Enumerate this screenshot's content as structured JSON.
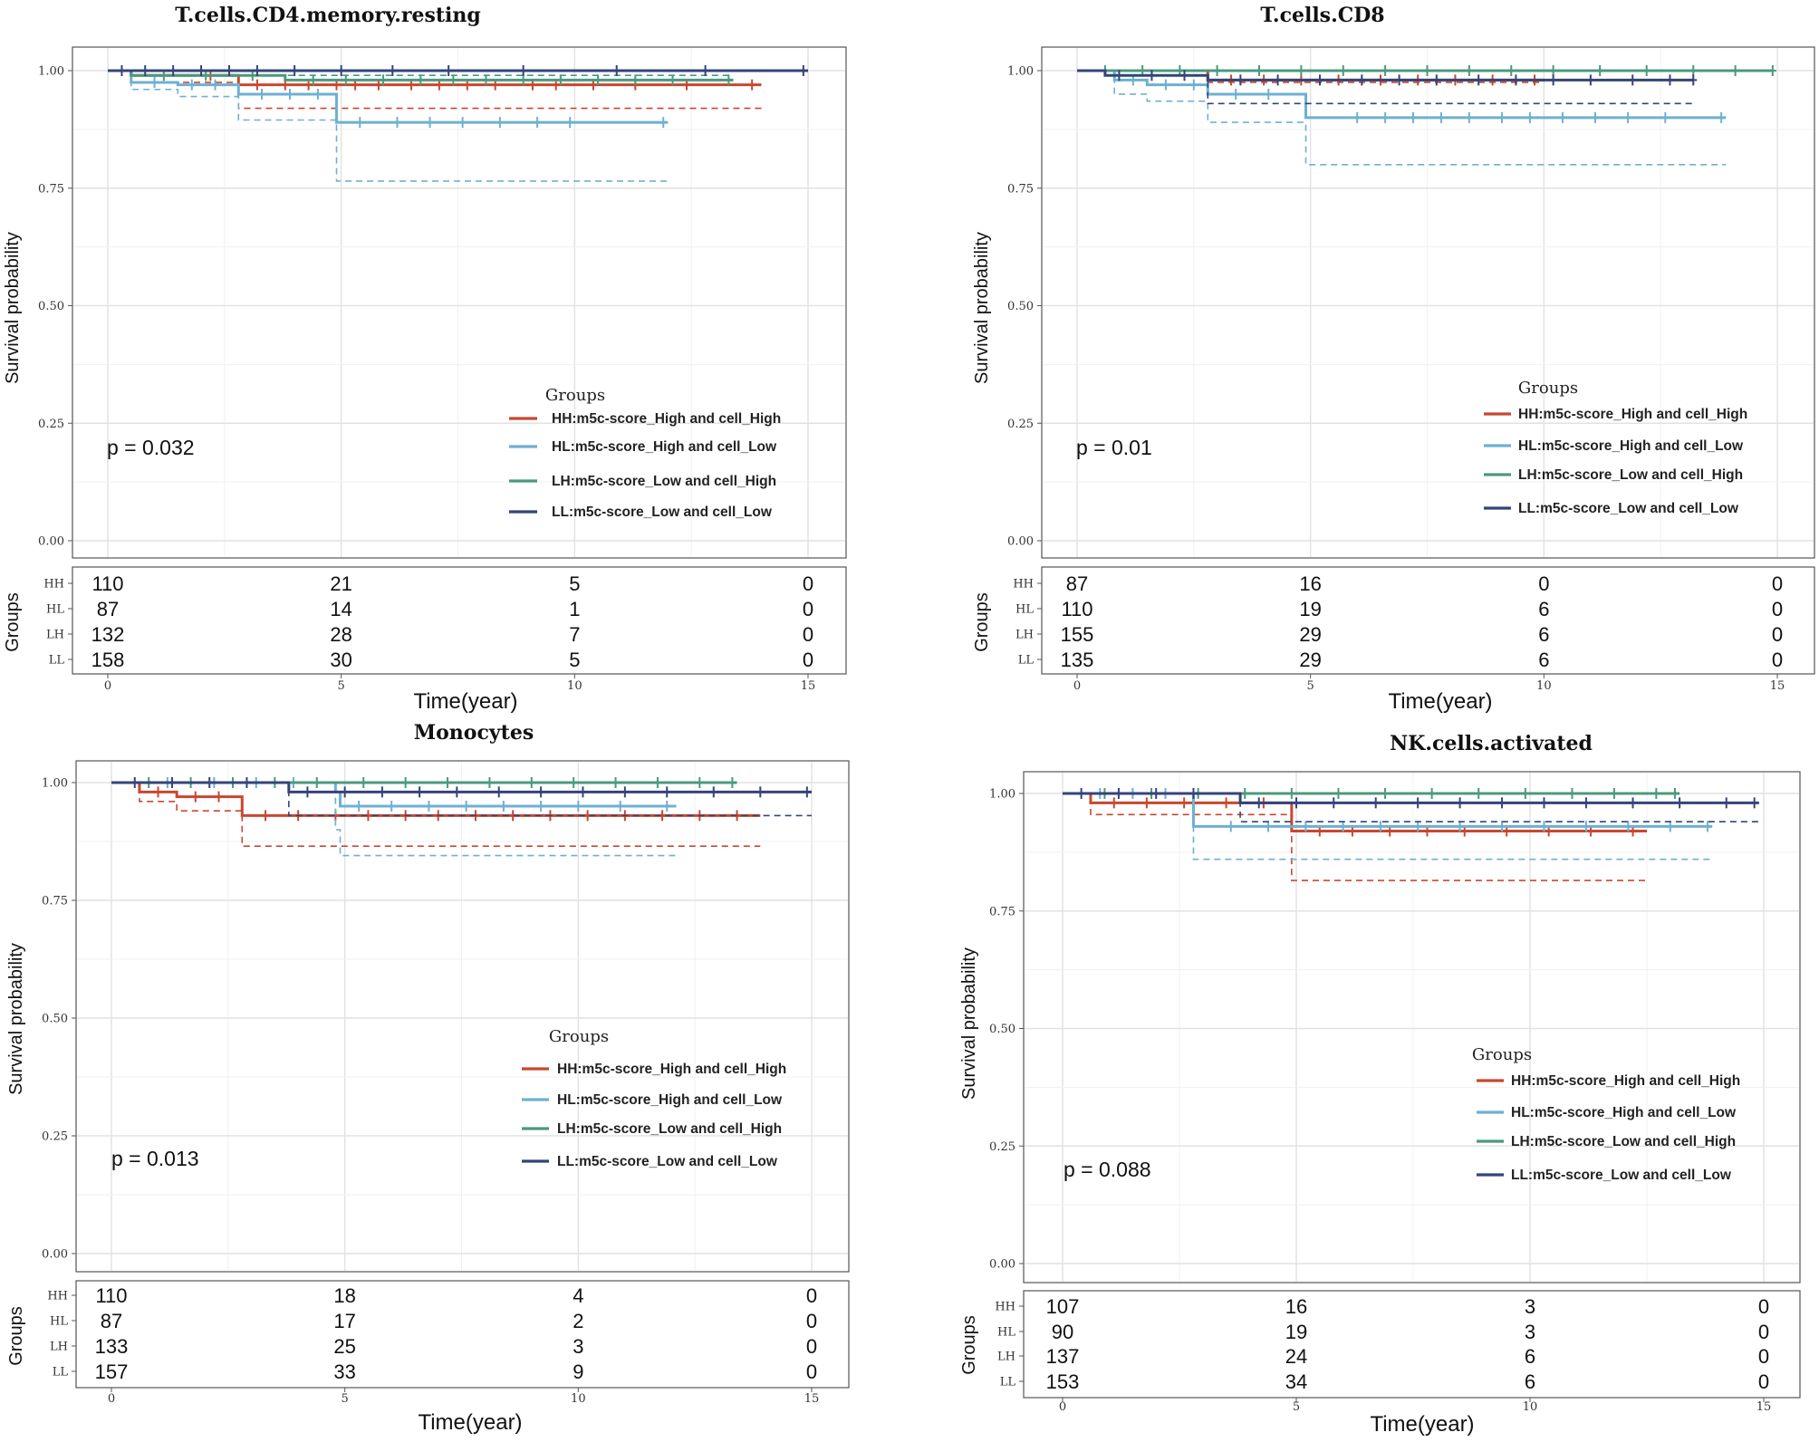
{
  "legend_title": "Groups",
  "xlabel": "Time(year)",
  "ylabel": "Survival probability",
  "risk_ylabel": "Groups",
  "colors": {
    "HH": "#c9472e",
    "HL": "#6eb0d2",
    "LH": "#4a9a7c",
    "LL": "#34447a"
  },
  "chart_data": [
    {
      "type": "line",
      "title": "T.cells.CD4.memory.resting",
      "p_value": "p = 0.032",
      "xlim": [
        0,
        15
      ],
      "ylim": [
        0,
        1
      ],
      "x_ticks": [
        "0",
        "5",
        "10",
        "15"
      ],
      "y_ticks": [
        "0.00",
        "0.25",
        "0.50",
        "0.75",
        "1.00"
      ],
      "series": [
        {
          "key": "HH",
          "name": "HH:m5c-score_High and cell_High",
          "steps": [
            [
              0,
              1.0
            ],
            [
              0.5,
              0.99
            ],
            [
              2.8,
              0.97
            ],
            [
              14,
              0.97
            ]
          ],
          "ci_lower": [
            [
              0,
              1.0
            ],
            [
              0.5,
              0.975
            ],
            [
              2.8,
              0.92
            ],
            [
              14,
              0.92
            ]
          ],
          "censors": [
            2.2,
            3.2,
            3.8,
            4.3,
            4.9,
            5.3,
            5.8,
            6.5,
            7.1,
            7.7,
            8.3,
            9.1,
            9.6,
            10.4,
            11.3,
            12.4,
            13.8
          ]
        },
        {
          "key": "HL",
          "name": "HL:m5c-score_High and cell_Low",
          "steps": [
            [
              0,
              1.0
            ],
            [
              0.5,
              0.975
            ],
            [
              1.5,
              0.97
            ],
            [
              2.8,
              0.95
            ],
            [
              4.9,
              0.89
            ],
            [
              12,
              0.89
            ]
          ],
          "ci_lower": [
            [
              0,
              1.0
            ],
            [
              0.5,
              0.96
            ],
            [
              1.5,
              0.945
            ],
            [
              2.8,
              0.895
            ],
            [
              4.9,
              0.765
            ],
            [
              12,
              0.765
            ]
          ],
          "censors": [
            1.0,
            1.8,
            2.3,
            3.3,
            3.9,
            4.5,
            5.4,
            6.2,
            6.9,
            7.6,
            8.4,
            9.2,
            9.9,
            11.9
          ]
        },
        {
          "key": "LH",
          "name": "LH:m5c-score_Low and cell_High",
          "steps": [
            [
              0,
              1.0
            ],
            [
              0.5,
              0.99
            ],
            [
              3.8,
              0.98
            ],
            [
              13.4,
              0.98
            ]
          ],
          "ci_lower": [
            [
              0,
              1.0
            ],
            [
              0.5,
              0.99
            ],
            [
              13.4,
              0.99
            ]
          ],
          "censors": [
            1.2,
            2.1,
            3.1,
            4.4,
            5.1,
            5.9,
            6.7,
            7.4,
            8.1,
            8.9,
            9.7,
            10.5,
            11.3,
            12.1,
            13.3
          ]
        },
        {
          "key": "LL",
          "name": "LL:m5c-score_Low and cell_Low",
          "steps": [
            [
              0,
              1.0
            ],
            [
              15,
              1.0
            ]
          ],
          "ci_lower": [],
          "censors": [
            0.3,
            0.8,
            1.4,
            2.0,
            2.6,
            3.2,
            4.0,
            5.0,
            6.1,
            7.3,
            8.9,
            10.9,
            12.8,
            14.9
          ]
        }
      ],
      "risk_table": {
        "rows": [
          "HH",
          "HL",
          "LH",
          "LL"
        ],
        "counts": [
          [
            "110",
            "21",
            "5",
            "0"
          ],
          [
            "87",
            "14",
            "1",
            "0"
          ],
          [
            "132",
            "28",
            "7",
            "0"
          ],
          [
            "158",
            "30",
            "5",
            "0"
          ]
        ]
      }
    },
    {
      "type": "line",
      "title": "T.cells.CD8",
      "p_value": "p = 0.01",
      "xlim": [
        0,
        15
      ],
      "ylim": [
        0,
        1
      ],
      "x_ticks": [
        "0",
        "5",
        "10",
        "15"
      ],
      "y_ticks": [
        "0.00",
        "0.25",
        "0.50",
        "0.75",
        "1.00"
      ],
      "series": [
        {
          "key": "HH",
          "name": "HH:m5c-score_High and cell_High",
          "steps": [
            [
              0,
              1.0
            ],
            [
              2.8,
              0.98
            ],
            [
              10,
              0.98
            ]
          ],
          "ci_lower": [
            [
              0,
              1.0
            ],
            [
              2.8,
              0.975
            ],
            [
              10,
              0.975
            ]
          ],
          "censors": [
            3.3,
            4.0,
            4.8,
            5.6,
            6.5,
            7.3,
            8.1,
            8.9,
            9.8
          ]
        },
        {
          "key": "HL",
          "name": "HL:m5c-score_High and cell_Low",
          "steps": [
            [
              0,
              1.0
            ],
            [
              0.8,
              0.98
            ],
            [
              1.5,
              0.97
            ],
            [
              2.8,
              0.95
            ],
            [
              4.9,
              0.9
            ],
            [
              13.9,
              0.9
            ]
          ],
          "ci_lower": [
            [
              0,
              1.0
            ],
            [
              0.8,
              0.95
            ],
            [
              1.5,
              0.935
            ],
            [
              2.8,
              0.89
            ],
            [
              4.9,
              0.8
            ],
            [
              13.9,
              0.8
            ]
          ],
          "censors": [
            1.2,
            1.9,
            2.5,
            3.4,
            4.1,
            6.0,
            6.6,
            7.2,
            7.8,
            8.4,
            9.1,
            9.7,
            10.4,
            11.1,
            11.8,
            12.6,
            13.8
          ]
        },
        {
          "key": "LH",
          "name": "LH:m5c-score_Low and cell_High",
          "steps": [
            [
              0,
              1.0
            ],
            [
              14.9,
              1.0
            ]
          ],
          "ci_lower": [],
          "censors": [
            0.6,
            1.4,
            2.2,
            3.0,
            3.9,
            4.8,
            5.7,
            6.6,
            7.5,
            8.4,
            9.3,
            10.2,
            11.2,
            12.2,
            13.2,
            14.1,
            14.9
          ]
        },
        {
          "key": "LL",
          "name": "LL:m5c-score_Low and cell_Low",
          "steps": [
            [
              0,
              1.0
            ],
            [
              0.6,
              0.99
            ],
            [
              2.8,
              0.98
            ],
            [
              13.2,
              0.98
            ]
          ],
          "ci_lower": [
            [
              0,
              1.0
            ],
            [
              0.6,
              0.99
            ],
            [
              2.8,
              0.93
            ],
            [
              13.2,
              0.93
            ]
          ],
          "censors": [
            0.9,
            1.6,
            2.3,
            3.5,
            4.3,
            5.2,
            6.1,
            6.9,
            7.7,
            8.6,
            9.4,
            10.2,
            11.0,
            11.9,
            12.7,
            13.2
          ]
        }
      ],
      "risk_table": {
        "rows": [
          "HH",
          "HL",
          "LH",
          "LL"
        ],
        "counts": [
          [
            "87",
            "16",
            "0",
            "0"
          ],
          [
            "110",
            "19",
            "6",
            "0"
          ],
          [
            "155",
            "29",
            "6",
            "0"
          ],
          [
            "135",
            "29",
            "6",
            "0"
          ]
        ]
      }
    },
    {
      "type": "line",
      "title": "Monocytes",
      "p_value": "p = 0.013",
      "xlim": [
        0,
        15
      ],
      "ylim": [
        0,
        1
      ],
      "x_ticks": [
        "0",
        "5",
        "10",
        "15"
      ],
      "y_ticks": [
        "0.00",
        "0.25",
        "0.50",
        "0.75",
        "1.00"
      ],
      "series": [
        {
          "key": "HH",
          "name": "HH:m5c-score_High and cell_High",
          "steps": [
            [
              0,
              1.0
            ],
            [
              0.6,
              0.98
            ],
            [
              1.4,
              0.97
            ],
            [
              2.8,
              0.93
            ],
            [
              13.9,
              0.93
            ]
          ],
          "ci_lower": [
            [
              0,
              1.0
            ],
            [
              0.6,
              0.96
            ],
            [
              1.4,
              0.94
            ],
            [
              2.8,
              0.865
            ],
            [
              13.9,
              0.865
            ]
          ],
          "censors": [
            1.0,
            1.8,
            2.3,
            3.3,
            4.0,
            4.8,
            5.5,
            6.3,
            7.0,
            7.8,
            8.6,
            9.4,
            10.2,
            11.0,
            11.8,
            12.6,
            13.4
          ]
        },
        {
          "key": "HL",
          "name": "HL:m5c-score_High and cell_Low",
          "steps": [
            [
              0,
              1.0
            ],
            [
              4.8,
              0.98
            ],
            [
              4.9,
              0.95
            ],
            [
              12.1,
              0.95
            ]
          ],
          "ci_lower": [
            [
              0,
              1.0
            ],
            [
              4.8,
              0.9
            ],
            [
              4.9,
              0.845
            ],
            [
              12.1,
              0.845
            ]
          ],
          "censors": [
            1.2,
            2.2,
            3.1,
            3.9,
            5.3,
            6.0,
            6.8,
            7.6,
            8.4,
            9.2,
            10.0,
            10.9,
            11.9
          ]
        },
        {
          "key": "LH",
          "name": "LH:m5c-score_Low and cell_High",
          "steps": [
            [
              0,
              1.0
            ],
            [
              13.4,
              1.0
            ]
          ],
          "ci_lower": [],
          "censors": [
            0.8,
            1.7,
            2.6,
            3.5,
            4.4,
            5.4,
            6.3,
            7.2,
            8.1,
            9.0,
            9.9,
            10.8,
            11.7,
            12.6,
            13.3
          ]
        },
        {
          "key": "LL",
          "name": "LL:m5c-score_Low and cell_Low",
          "steps": [
            [
              0,
              1.0
            ],
            [
              3.8,
              0.98
            ],
            [
              15,
              0.98
            ]
          ],
          "ci_lower": [
            [
              0,
              1.0
            ],
            [
              3.8,
              0.93
            ],
            [
              15,
              0.93
            ]
          ],
          "censors": [
            0.5,
            1.3,
            2.1,
            2.9,
            4.2,
            5.0,
            5.8,
            6.6,
            7.4,
            8.3,
            9.2,
            10.1,
            11.0,
            11.9,
            12.9,
            13.9,
            14.9
          ]
        }
      ],
      "risk_table": {
        "rows": [
          "HH",
          "HL",
          "LH",
          "LL"
        ],
        "counts": [
          [
            "110",
            "18",
            "4",
            "0"
          ],
          [
            "87",
            "17",
            "2",
            "0"
          ],
          [
            "133",
            "25",
            "3",
            "0"
          ],
          [
            "157",
            "33",
            "9",
            "0"
          ]
        ]
      }
    },
    {
      "type": "line",
      "title": "NK.cells.activated",
      "p_value": "p = 0.088",
      "xlim": [
        0,
        15
      ],
      "ylim": [
        0,
        1
      ],
      "x_ticks": [
        "0",
        "5",
        "10",
        "15"
      ],
      "y_ticks": [
        "0.00",
        "0.25",
        "0.50",
        "0.75",
        "1.00"
      ],
      "series": [
        {
          "key": "HH",
          "name": "HH:m5c-score_High and cell_High",
          "steps": [
            [
              0,
              1.0
            ],
            [
              0.6,
              0.98
            ],
            [
              4.9,
              0.92
            ],
            [
              12.5,
              0.92
            ]
          ],
          "ci_lower": [
            [
              0,
              1.0
            ],
            [
              0.6,
              0.955
            ],
            [
              4.9,
              0.815
            ],
            [
              12.5,
              0.815
            ]
          ],
          "censors": [
            1.1,
            1.8,
            2.6,
            3.5,
            4.3,
            5.5,
            6.2,
            7.0,
            7.8,
            8.6,
            9.5,
            10.4,
            11.3,
            12.2
          ]
        },
        {
          "key": "HL",
          "name": "HL:m5c-score_High and cell_Low",
          "steps": [
            [
              0,
              1.0
            ],
            [
              2.8,
              0.93
            ],
            [
              13.9,
              0.93
            ]
          ],
          "ci_lower": [
            [
              0,
              1.0
            ],
            [
              2.8,
              0.86
            ],
            [
              13.9,
              0.86
            ]
          ],
          "censors": [
            0.8,
            1.5,
            2.2,
            3.6,
            4.4,
            5.2,
            6.0,
            6.8,
            7.6,
            8.5,
            9.4,
            10.3,
            11.2,
            12.1,
            13.0,
            13.8
          ]
        },
        {
          "key": "LH",
          "name": "LH:m5c-score_Low and cell_High",
          "steps": [
            [
              0,
              1.0
            ],
            [
              13.2,
              1.0
            ]
          ],
          "ci_lower": [],
          "censors": [
            0.9,
            1.9,
            2.9,
            3.9,
            4.9,
            5.9,
            6.9,
            7.9,
            8.9,
            9.9,
            10.9,
            11.8,
            12.7,
            13.1
          ]
        },
        {
          "key": "LL",
          "name": "LL:m5c-score_Low and cell_Low",
          "steps": [
            [
              0,
              1.0
            ],
            [
              3.8,
              0.98
            ],
            [
              14.9,
              0.98
            ]
          ],
          "ci_lower": [
            [
              0,
              1.0
            ],
            [
              3.8,
              0.94
            ],
            [
              14.9,
              0.94
            ]
          ],
          "censors": [
            0.4,
            1.2,
            2.0,
            2.8,
            4.2,
            5.0,
            5.8,
            6.7,
            7.6,
            8.5,
            9.4,
            10.3,
            11.2,
            12.2,
            13.2,
            14.2,
            14.8
          ]
        }
      ],
      "risk_table": {
        "rows": [
          "HH",
          "HL",
          "LH",
          "LL"
        ],
        "counts": [
          [
            "107",
            "16",
            "3",
            "0"
          ],
          [
            "90",
            "19",
            "3",
            "0"
          ],
          [
            "137",
            "24",
            "6",
            "0"
          ],
          [
            "153",
            "34",
            "6",
            "0"
          ]
        ]
      }
    }
  ]
}
